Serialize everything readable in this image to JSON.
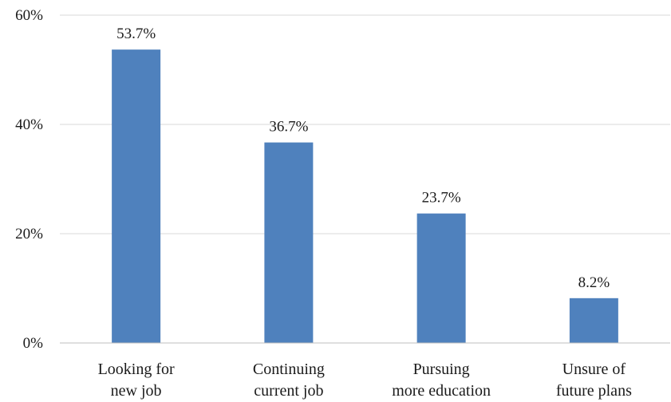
{
  "chart_data": {
    "type": "bar",
    "categories": [
      [
        "Looking for",
        "new job"
      ],
      [
        "Continuing",
        "current job"
      ],
      [
        "Pursuing",
        "more education"
      ],
      [
        "Unsure of",
        "future plans"
      ]
    ],
    "values": [
      53.7,
      36.7,
      23.7,
      8.2
    ],
    "value_labels": [
      "53.7%",
      "36.7%",
      "23.7%",
      "8.2%"
    ],
    "title": "",
    "xlabel": "",
    "ylabel": "",
    "ylim": [
      0,
      60
    ],
    "yticks": [
      0,
      20,
      40,
      60
    ],
    "ytick_labels": [
      "0%",
      "20%",
      "40%",
      "60%"
    ],
    "grid": true,
    "legend": "none",
    "bar_color": "#4f81bd"
  }
}
